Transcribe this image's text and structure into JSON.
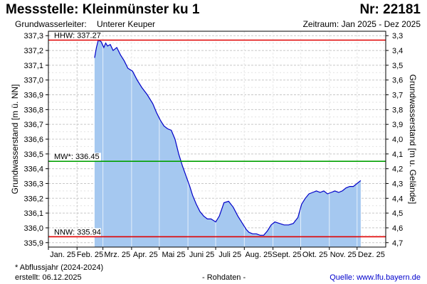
{
  "header": {
    "title": "Messstelle: Kleinmünster ku 1",
    "number": "Nr: 22181",
    "aquifer_label": "Grundwasserleiter:",
    "aquifer_value": "Unterer Keuper",
    "period": "Zeitraum: Jan 2025 - Dez 2025"
  },
  "footer": {
    "note": "* Abflussjahr (2024-2024)",
    "created": "erstellt:   06.12.2025",
    "raw": "- Rohdaten -",
    "source": "Quelle:  www.lfu.bayern.de"
  },
  "colors": {
    "fill": "#a5c8f0",
    "line": "#0000c8",
    "hhw": "#e00000",
    "mw": "#00a000",
    "nnw": "#e00000",
    "grid": "#c8c8c8"
  },
  "chart_data": {
    "type": "area",
    "ylabel_left": "Grundwasserstand [m ü. NN]",
    "ylabel_right": "Grundwasserstand [m u. Gelände]",
    "ylim": [
      335.87,
      337.33
    ],
    "yticks_left": [
      "337,3",
      "337,2",
      "337,1",
      "337,0",
      "336,9",
      "336,8",
      "336,7",
      "336,6",
      "336,5",
      "336,4",
      "336,3",
      "336,2",
      "336,1",
      "336,0",
      "335,9"
    ],
    "yticks_right": [
      "3,3",
      "3,4",
      "3,5",
      "3,6",
      "3,7",
      "3,8",
      "3,9",
      "4,0",
      "4,1",
      "4,2",
      "4,3",
      "4,4",
      "4,5",
      "4,6",
      "4,7"
    ],
    "months": [
      "Jan. 25",
      "Feb. 25",
      "Mrz. 25",
      "Apr. 25",
      "Mai 25",
      "Juni 25",
      "Juli 25",
      "Aug. 25",
      "Sept. 25",
      "Okt. 25",
      "Nov. 25",
      "Dez. 25"
    ],
    "reference_lines": [
      {
        "key": "hhw",
        "label": "HHW: 337.27",
        "value": 337.27
      },
      {
        "key": "mw",
        "label": "MW*: 336.45",
        "value": 336.45
      },
      {
        "key": "nnw",
        "label": "NNW: 335.94",
        "value": 335.94
      }
    ],
    "series": [
      {
        "x": [
          "2025-02-20",
          "2025-02-22",
          "2025-02-24",
          "2025-02-27",
          "2025-03-02",
          "2025-03-04",
          "2025-03-06",
          "2025-03-09",
          "2025-03-12",
          "2025-03-16",
          "2025-03-20",
          "2025-03-24",
          "2025-03-28",
          "2025-04-02",
          "2025-04-07",
          "2025-04-12",
          "2025-04-18",
          "2025-04-24",
          "2025-04-28",
          "2025-05-02",
          "2025-05-06",
          "2025-05-10",
          "2025-05-14",
          "2025-05-18",
          "2025-05-22",
          "2025-05-26",
          "2025-05-30",
          "2025-06-03",
          "2025-06-06",
          "2025-06-10",
          "2025-06-14",
          "2025-06-18",
          "2025-06-22",
          "2025-06-26",
          "2025-07-01",
          "2025-07-05",
          "2025-07-10",
          "2025-07-15",
          "2025-07-20",
          "2025-07-25",
          "2025-07-30",
          "2025-08-03",
          "2025-08-06",
          "2025-08-10",
          "2025-08-14",
          "2025-08-18",
          "2025-08-22",
          "2025-08-26",
          "2025-08-30",
          "2025-09-03",
          "2025-09-08",
          "2025-09-13",
          "2025-09-18",
          "2025-09-23",
          "2025-09-28",
          "2025-10-02",
          "2025-10-06",
          "2025-10-10",
          "2025-10-14",
          "2025-10-18",
          "2025-10-22",
          "2025-10-26",
          "2025-10-30",
          "2025-11-03",
          "2025-11-07",
          "2025-11-11",
          "2025-11-15",
          "2025-11-19",
          "2025-11-23",
          "2025-11-27",
          "2025-12-01",
          "2025-12-03",
          "2025-12-05"
        ],
        "y": [
          337.15,
          337.22,
          337.27,
          337.26,
          337.22,
          337.25,
          337.23,
          337.24,
          337.2,
          337.22,
          337.17,
          337.13,
          337.08,
          337.06,
          337.0,
          336.95,
          336.9,
          336.84,
          336.78,
          336.73,
          336.69,
          336.67,
          336.66,
          336.6,
          336.5,
          336.42,
          336.35,
          336.28,
          336.22,
          336.16,
          336.11,
          336.08,
          336.06,
          336.06,
          336.04,
          336.08,
          336.17,
          336.18,
          336.14,
          336.08,
          336.03,
          335.99,
          335.97,
          335.96,
          335.96,
          335.95,
          335.95,
          335.98,
          336.02,
          336.04,
          336.03,
          336.02,
          336.02,
          336.03,
          336.07,
          336.16,
          336.2,
          336.23,
          336.24,
          336.25,
          336.24,
          336.25,
          336.23,
          336.24,
          336.25,
          336.24,
          336.25,
          336.27,
          336.28,
          336.28,
          336.3,
          336.31,
          336.32
        ]
      }
    ]
  }
}
